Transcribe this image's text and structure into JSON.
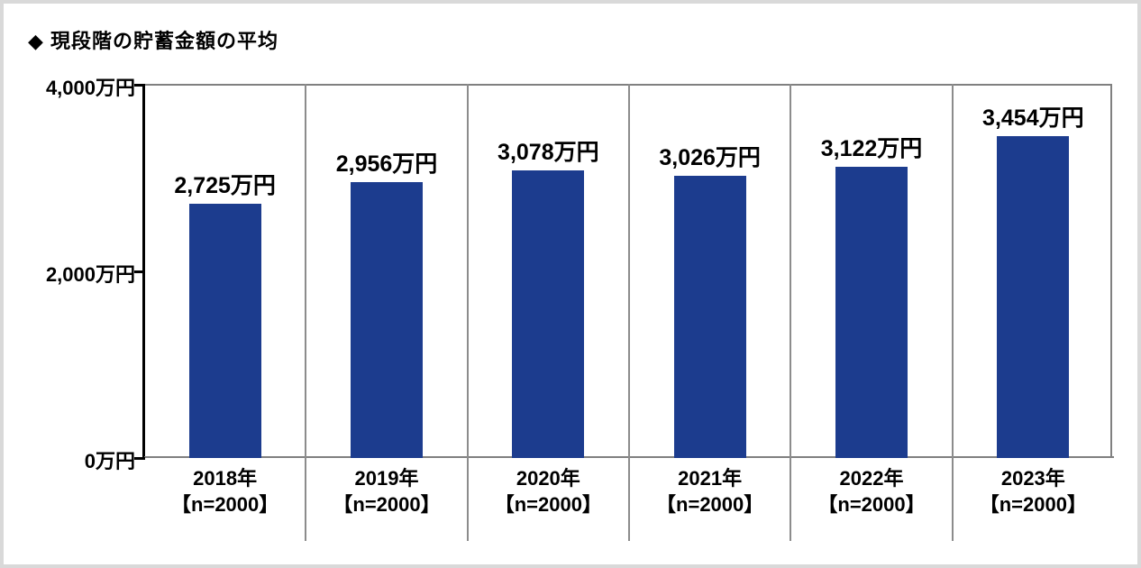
{
  "page": {
    "title": "◆ 現段階の貯蓄金額の平均"
  },
  "chart_data": {
    "type": "bar",
    "title": "◆ 現段階の貯蓄金額の平均",
    "categories": [
      "2018年",
      "2019年",
      "2020年",
      "2021年",
      "2022年",
      "2023年"
    ],
    "category_sublabels": [
      "【n=2000】",
      "【n=2000】",
      "【n=2000】",
      "【n=2000】",
      "【n=2000】",
      "【n=2000】"
    ],
    "values": [
      2725,
      2956,
      3078,
      3026,
      3122,
      3454
    ],
    "value_labels": [
      "2,725万円",
      "2,956万円",
      "3,078万円",
      "3,026万円",
      "3,122万円",
      "3,454万円"
    ],
    "unit": "万円",
    "ylim": [
      0,
      4000
    ],
    "yticks": [
      0,
      2000,
      4000
    ],
    "ytick_labels": [
      "0万円",
      "2,000万円",
      "4,000万円"
    ],
    "bar_color": "#1c3c8e",
    "axis_color": "#000000",
    "grid_color": "#8c8c8c",
    "legend": "none",
    "grid": "column-dividers"
  }
}
